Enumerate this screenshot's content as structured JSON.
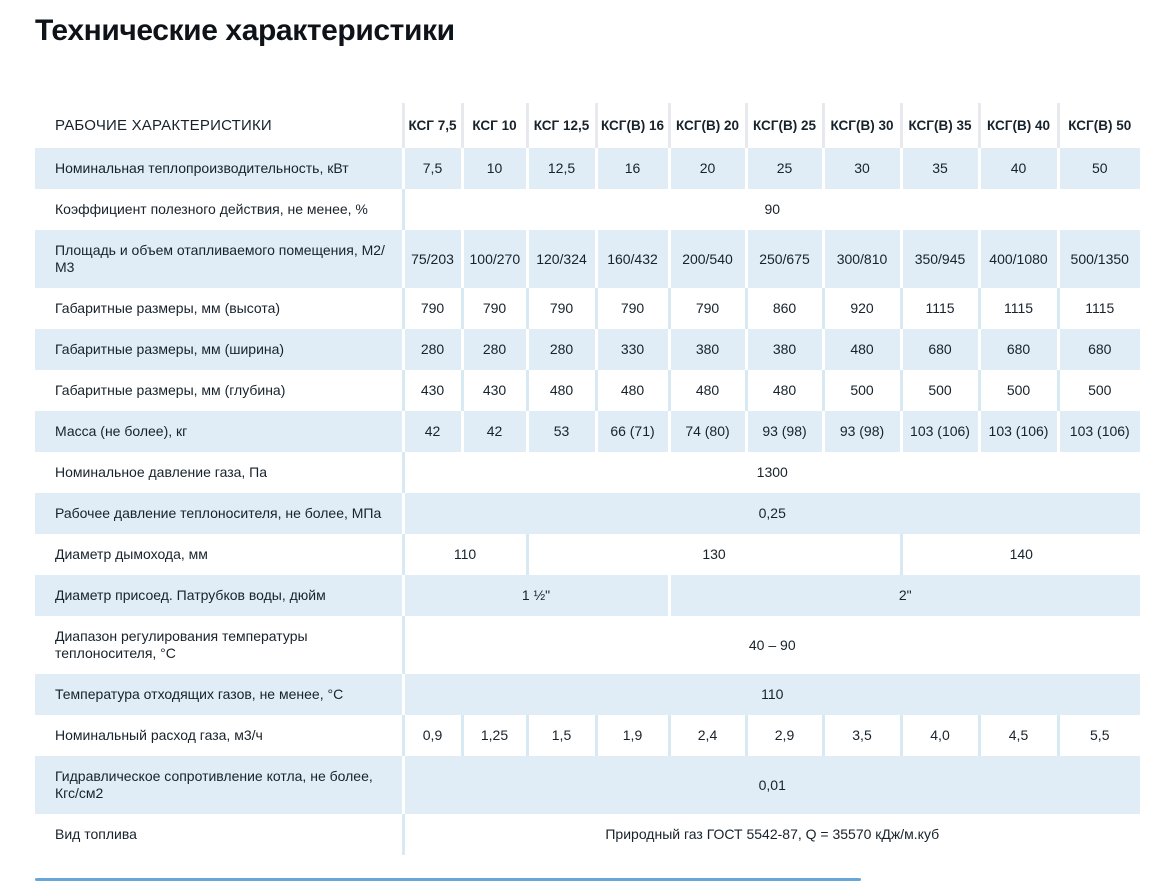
{
  "title": "Технические характеристики",
  "colors": {
    "shaded_row_background": "#e0edf6",
    "divider_on_white_row": "#d9e9f4",
    "divider_on_shaded_row": "#ffffff",
    "header_divider": "#e7e9ef",
    "scrollbar_thumb": "#66a7d8",
    "text": "#17222b"
  },
  "table": {
    "corner_label": "РАБОЧИЕ ХАРАКТЕРИСТИКИ",
    "columns": [
      "КСГ 7,5",
      "КСГ 10",
      "КСГ 12,5",
      "КСГ(В) 16",
      "КСГ(В) 20",
      "КСГ(В) 25",
      "КСГ(В) 30",
      "КСГ(В) 35",
      "КСГ(В) 40",
      "КСГ(В) 50"
    ],
    "rows": [
      {
        "label": "Номинальная теплопроизводительность, кВт",
        "cells": [
          {
            "value": "7,5"
          },
          {
            "value": "10"
          },
          {
            "value": "12,5"
          },
          {
            "value": "16"
          },
          {
            "value": "20"
          },
          {
            "value": "25"
          },
          {
            "value": "30"
          },
          {
            "value": "35"
          },
          {
            "value": "40"
          },
          {
            "value": "50"
          }
        ]
      },
      {
        "label": "Коэффициент полезного действия, не менее, %",
        "cells": [
          {
            "value": "90",
            "span": 10
          }
        ]
      },
      {
        "label": "Площадь и объем отапливаемого помещения, М2/М3",
        "cells": [
          {
            "value": "75/203"
          },
          {
            "value": "100/270"
          },
          {
            "value": "120/324"
          },
          {
            "value": "160/432"
          },
          {
            "value": "200/540"
          },
          {
            "value": "250/675"
          },
          {
            "value": "300/810"
          },
          {
            "value": "350/945"
          },
          {
            "value": "400/1080"
          },
          {
            "value": "500/1350"
          }
        ]
      },
      {
        "label": "Габаритные размеры, мм (высота)",
        "cells": [
          {
            "value": "790"
          },
          {
            "value": "790"
          },
          {
            "value": "790"
          },
          {
            "value": "790"
          },
          {
            "value": "790"
          },
          {
            "value": "860"
          },
          {
            "value": "920"
          },
          {
            "value": "1115"
          },
          {
            "value": "1115"
          },
          {
            "value": "1115"
          }
        ]
      },
      {
        "label": "Габаритные размеры, мм (ширина)",
        "cells": [
          {
            "value": "280"
          },
          {
            "value": "280"
          },
          {
            "value": "280"
          },
          {
            "value": "330"
          },
          {
            "value": "380"
          },
          {
            "value": "380"
          },
          {
            "value": "480"
          },
          {
            "value": "680"
          },
          {
            "value": "680"
          },
          {
            "value": "680"
          }
        ]
      },
      {
        "label": "Габаритные размеры, мм (глубина)",
        "cells": [
          {
            "value": "430"
          },
          {
            "value": "430"
          },
          {
            "value": "480"
          },
          {
            "value": "480"
          },
          {
            "value": "480"
          },
          {
            "value": "480"
          },
          {
            "value": "500"
          },
          {
            "value": "500"
          },
          {
            "value": "500"
          },
          {
            "value": "500"
          }
        ]
      },
      {
        "label": "Масса (не более), кг",
        "cells": [
          {
            "value": "42"
          },
          {
            "value": "42"
          },
          {
            "value": "53"
          },
          {
            "value": "66 (71)"
          },
          {
            "value": "74 (80)"
          },
          {
            "value": "93 (98)"
          },
          {
            "value": "93 (98)"
          },
          {
            "value": "103 (106)"
          },
          {
            "value": "103 (106)"
          },
          {
            "value": "103 (106)"
          }
        ]
      },
      {
        "label": "Номинальное давление газа, Па",
        "cells": [
          {
            "value": "1300",
            "span": 10
          }
        ]
      },
      {
        "label": "Рабочее давление теплоносителя, не более, МПа",
        "cells": [
          {
            "value": "0,25",
            "span": 10
          }
        ]
      },
      {
        "label": "Диаметр дымохода, мм",
        "cells": [
          {
            "value": "110",
            "span": 2
          },
          {
            "value": "130",
            "span": 5
          },
          {
            "value": "140",
            "span": 3
          }
        ]
      },
      {
        "label": "Диаметр присоед. Патрубков воды, дюйм",
        "cells": [
          {
            "value": "1 ½\"",
            "span": 4
          },
          {
            "value": "2\"",
            "span": 6
          }
        ]
      },
      {
        "label": "Диапазон регулирования температуры теплоносителя, °С",
        "cells": [
          {
            "value": "40 – 90",
            "span": 10
          }
        ]
      },
      {
        "label": "Температура отходящих газов, не менее, °С",
        "cells": [
          {
            "value": "110",
            "span": 10
          }
        ]
      },
      {
        "label": "Номинальный расход газа, м3/ч",
        "cells": [
          {
            "value": "0,9"
          },
          {
            "value": "1,25"
          },
          {
            "value": "1,5"
          },
          {
            "value": "1,9"
          },
          {
            "value": "2,4"
          },
          {
            "value": "2,9"
          },
          {
            "value": "3,5"
          },
          {
            "value": "4,0"
          },
          {
            "value": "4,5"
          },
          {
            "value": "5,5"
          }
        ]
      },
      {
        "label": "Гидравлическое сопротивление котла, не более, Кгс/см2",
        "cells": [
          {
            "value": "0,01",
            "span": 10
          }
        ]
      },
      {
        "label": "Вид топлива",
        "cells": [
          {
            "value": "Природный газ ГОСТ 5542-87, Q = 35570 кДж/м.куб",
            "span": 10
          }
        ]
      }
    ]
  }
}
